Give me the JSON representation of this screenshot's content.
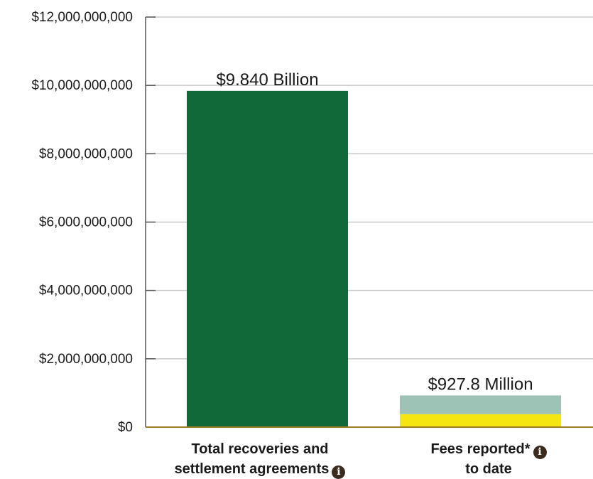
{
  "chart_data": {
    "type": "bar",
    "ylim": [
      0,
      12000000000
    ],
    "yticks": [
      0,
      2000000000,
      4000000000,
      6000000000,
      8000000000,
      10000000000,
      12000000000
    ],
    "ytick_labels": [
      "$0",
      "$2,000,000,000",
      "$4,000,000,000",
      "$6,000,000,000",
      "$8,000,000,000",
      "$10,000,000,000",
      "$12,000,000,000"
    ],
    "grid": true,
    "categories": [
      {
        "line1": "Total recoveries and",
        "line2": "settlement agreements",
        "has_info_icon": true,
        "value": 9840000000,
        "data_label": "$9.840 Billion",
        "segments": [
          {
            "value": 9840000000,
            "color": "#116838"
          }
        ]
      },
      {
        "line1": "Fees reported*",
        "line2": "to date",
        "has_info_icon": true,
        "value": 927800000,
        "data_label": "$927.8 Million",
        "segments": [
          {
            "value": 380000000,
            "color": "#f5e611"
          },
          {
            "value": 547800000,
            "color": "#9cc3b6"
          }
        ]
      }
    ],
    "colors": {
      "gridline": "#c8c8c8",
      "axis": "#555555",
      "baseline": "#a07b2c"
    },
    "info_icon": "info-icon"
  }
}
